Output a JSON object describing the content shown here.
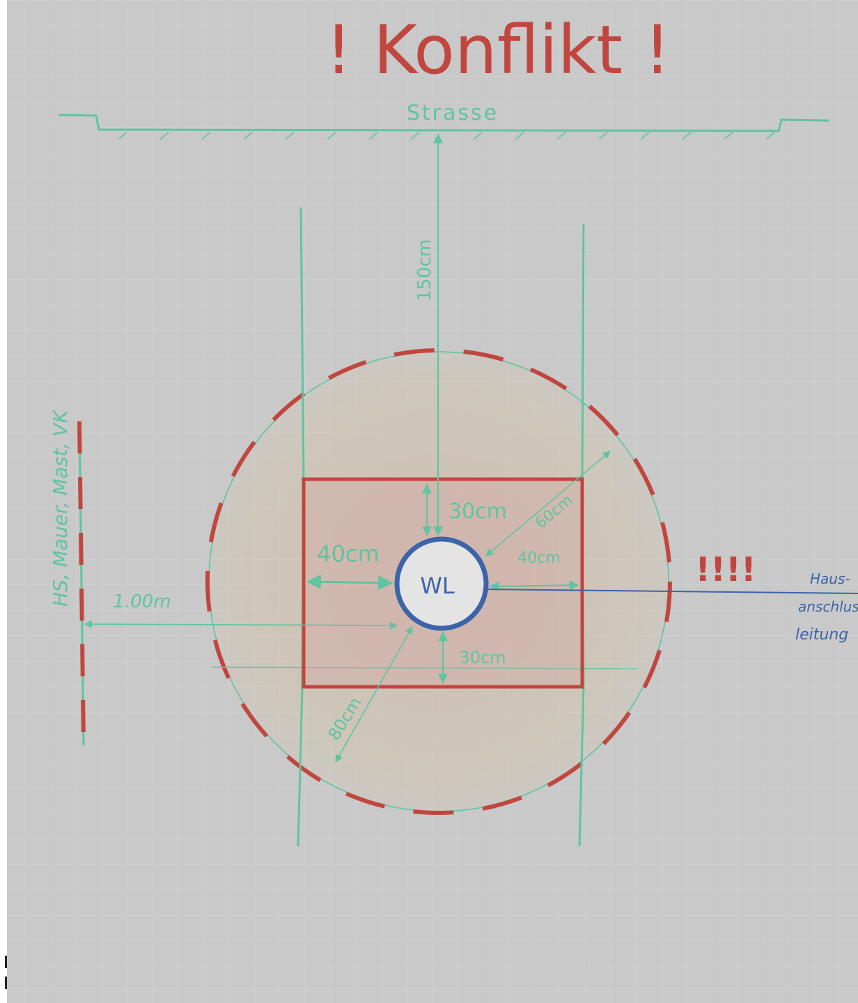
{
  "title": "! Konflikt !",
  "labels": {
    "street": "Strasse",
    "vertical_distance": "150cm",
    "top_clearance": "30cm",
    "bottom_clearance": "30cm",
    "left_clearance": "40cm",
    "right_clearance": "40cm",
    "radius_upper": "60cm",
    "radius_lower": "80cm",
    "left_distance": "1.00m",
    "pipe_label": "WL",
    "left_element": "HS, Mauer, Mast, VK",
    "warning": "!!!!",
    "house_line_1": "Haus-",
    "house_line_2": "anschlus",
    "house_line_3": "leitung"
  },
  "colors": {
    "paper": "#c9c9c9",
    "grid": "#d6d6d6",
    "green": "#5fc4a0",
    "red": "#c0473f",
    "blue": "#3d63a8",
    "fill": "#d3b7a2"
  }
}
